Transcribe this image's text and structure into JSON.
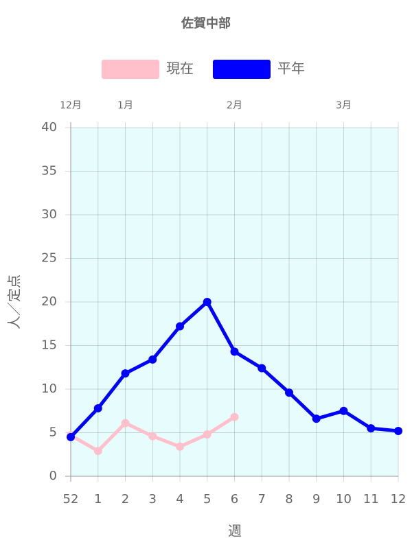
{
  "chart_data": {
    "type": "line",
    "title": "佐賀中部",
    "categories": [
      "52",
      "1",
      "2",
      "3",
      "4",
      "5",
      "6",
      "7",
      "8",
      "9",
      "10",
      "11",
      "12"
    ],
    "top_categories": [
      "12月",
      null,
      "1月",
      null,
      null,
      null,
      "2月",
      null,
      null,
      null,
      "3月",
      null,
      null
    ],
    "series": [
      {
        "name": "現在",
        "color": "#ffc0cb",
        "values": [
          4.7,
          2.9,
          6.1,
          4.6,
          3.4,
          4.8,
          6.8,
          null,
          null,
          null,
          null,
          null,
          null
        ]
      },
      {
        "name": "平年",
        "color": "#0000ff",
        "values": [
          4.5,
          7.8,
          11.8,
          13.4,
          17.2,
          20.0,
          14.3,
          12.4,
          9.6,
          6.6,
          7.5,
          5.5,
          5.2
        ]
      }
    ],
    "ylim": [
      0,
      40
    ],
    "yticks": [
      0,
      5,
      10,
      15,
      20,
      25,
      30,
      35,
      40
    ],
    "xlabel": "週",
    "ylabel": "人／定点",
    "grid": true,
    "background": "#e6fcfd"
  }
}
